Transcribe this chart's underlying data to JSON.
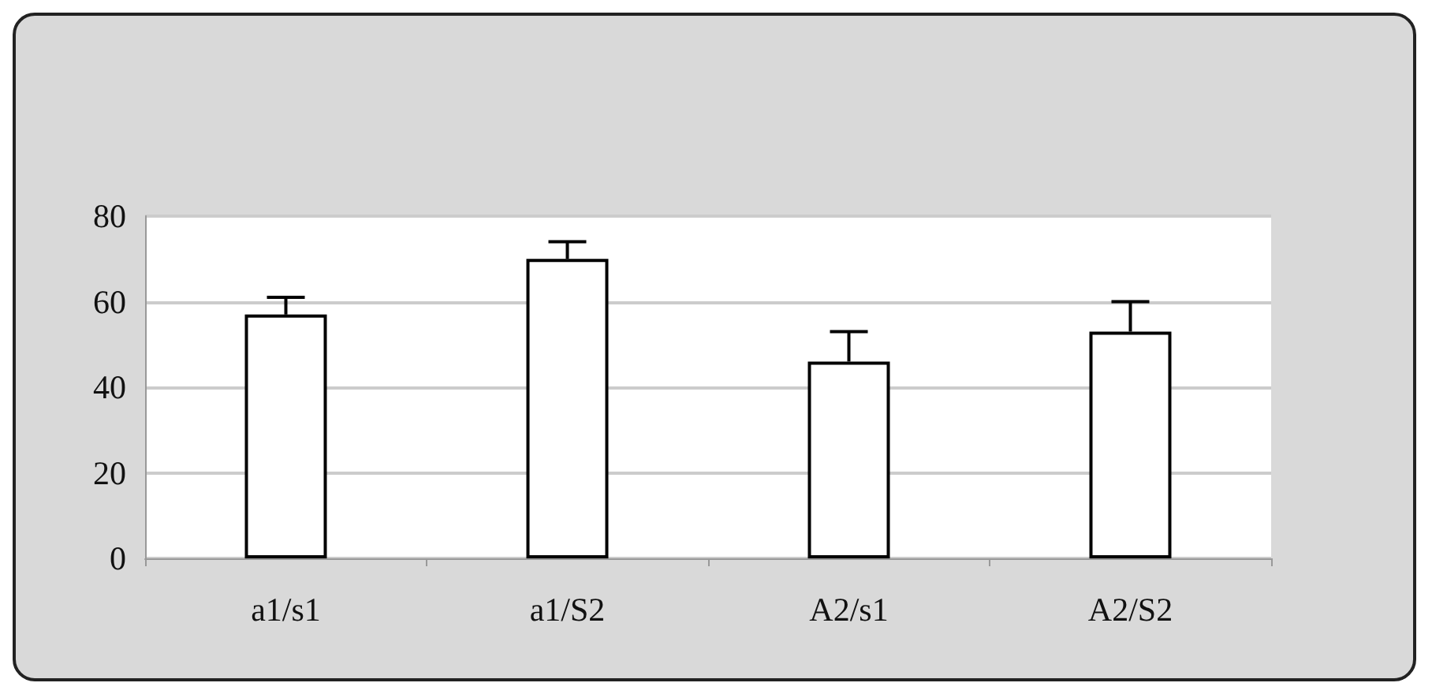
{
  "chart_data": {
    "type": "bar",
    "categories": [
      "a1/s1",
      "a1/S2",
      "A2/s1",
      "A2/S2"
    ],
    "values": [
      57,
      70,
      46,
      53
    ],
    "errors": [
      [
        57,
        61
      ],
      [
        70,
        74
      ],
      [
        46,
        53
      ],
      [
        53,
        60
      ]
    ],
    "color": "#ffffff",
    "ylim": [
      0,
      80
    ],
    "yticks": [
      0,
      20,
      40,
      60,
      80
    ],
    "grid": "y"
  }
}
